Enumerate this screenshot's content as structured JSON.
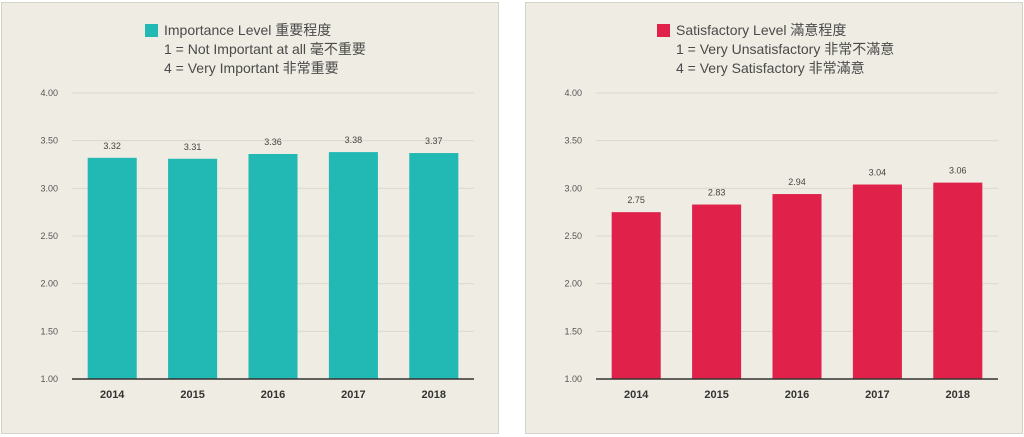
{
  "chart_data": [
    {
      "type": "bar",
      "legend_label": "Importance Level 重要程度",
      "legend_line2": "1 = Not Important at all 毫不重要",
      "legend_line3": "4 = Very Important 非常重要",
      "categories": [
        "2014",
        "2015",
        "2016",
        "2017",
        "2018"
      ],
      "values": [
        3.32,
        3.31,
        3.36,
        3.38,
        3.37
      ],
      "value_labels": [
        "3.32",
        "3.31",
        "3.36",
        "3.38",
        "3.37"
      ],
      "ylim": [
        1.0,
        4.0
      ],
      "yticks": [
        "1.00",
        "1.50",
        "2.00",
        "2.50",
        "3.00",
        "3.50",
        "4.00"
      ],
      "color": "#22b8b4",
      "grid": true,
      "legend_position": "top"
    },
    {
      "type": "bar",
      "legend_label": "Satisfactory Level 滿意程度",
      "legend_line2": "1 = Very Unsatisfactory 非常不滿意",
      "legend_line3": "4 = Very Satisfactory 非常滿意",
      "categories": [
        "2014",
        "2015",
        "2016",
        "2017",
        "2018"
      ],
      "values": [
        2.75,
        2.83,
        2.94,
        3.04,
        3.06
      ],
      "value_labels": [
        "2.75",
        "2.83",
        "2.94",
        "3.04",
        "3.06"
      ],
      "ylim": [
        1.0,
        4.0
      ],
      "yticks": [
        "1.00",
        "1.50",
        "2.00",
        "2.50",
        "3.00",
        "3.50",
        "4.00"
      ],
      "color": "#e0224b",
      "grid": true,
      "legend_position": "top"
    }
  ]
}
